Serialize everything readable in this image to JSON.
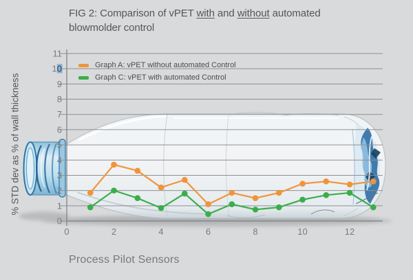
{
  "figure": {
    "title": {
      "prefix": "FIG 2: Comparison of vPET ",
      "underlined_1": "with",
      "middle": " and ",
      "underlined_2": "without",
      "suffix": " automated",
      "line2": "blowmolder control"
    }
  },
  "chart_data": {
    "type": "line",
    "x": [
      1,
      2,
      3,
      4,
      5,
      6,
      7,
      8,
      9,
      10,
      11,
      12,
      13
    ],
    "series": [
      {
        "name": "Graph A: vPET without automated Control",
        "color": "#f0943c",
        "values": [
          1.85,
          3.7,
          3.3,
          2.2,
          2.7,
          1.1,
          1.85,
          1.5,
          1.85,
          2.45,
          2.6,
          2.4,
          2.6
        ]
      },
      {
        "name": "Graph C: vPET with automated Control",
        "color": "#3bad4a",
        "values": [
          0.9,
          2.0,
          1.5,
          0.85,
          1.8,
          0.45,
          1.1,
          0.75,
          0.9,
          1.4,
          1.7,
          1.85,
          0.9
        ]
      }
    ],
    "title": "FIG 2: Comparison of vPET with and without automated blowmolder control",
    "xlabel": "Process Pilot Sensors",
    "ylabel": "% STD dev as % of wall thickness",
    "xlim": [
      0,
      13.4
    ],
    "ylim": [
      0,
      11
    ],
    "x_ticks": [
      0,
      2,
      4,
      6,
      8,
      10,
      12
    ],
    "y_ticks": [
      0,
      1,
      2,
      3,
      4,
      5,
      6,
      7,
      8,
      9,
      10,
      11
    ],
    "grid": "horizontal",
    "legend_position": "top-left-inside"
  },
  "quirks": {
    "selected_y_tick": "10",
    "selected_digit": "0"
  },
  "colors": {
    "background": "#d9dadc",
    "grid": "#8e9093",
    "axis": "#7d7f82",
    "tick_text": "#7a7b7e",
    "title_text": "#55565a",
    "legend_text": "#4b4c4f",
    "xlabel_text": "#77787c",
    "selection_bg": "#8fb3ce",
    "selection_text": "#1d4066"
  }
}
